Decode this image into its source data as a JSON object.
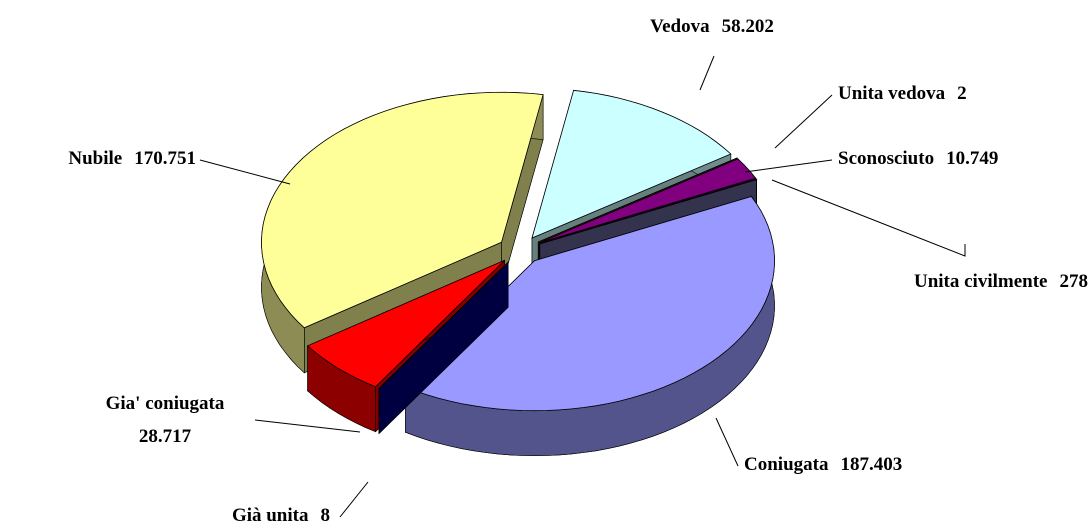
{
  "chart_data": {
    "type": "pie3d",
    "categories": [
      "Vedova",
      "Unita vedova",
      "Sconosciuto",
      "Unita civilmente",
      "Coniugata",
      "Già unita",
      "Gia' coniugata",
      "Nubile"
    ],
    "values": [
      58202,
      2,
      10749,
      278,
      187403,
      8,
      28717,
      170751
    ],
    "value_labels": [
      "58.202",
      "2",
      "10.749",
      "278",
      "187.403",
      "8",
      "28.717",
      "170.751"
    ],
    "colors": [
      "#ccffff",
      "#996600",
      "#800080",
      "#666699",
      "#9999ff",
      "#000080",
      "#ff0000",
      "#ffff99"
    ]
  }
}
